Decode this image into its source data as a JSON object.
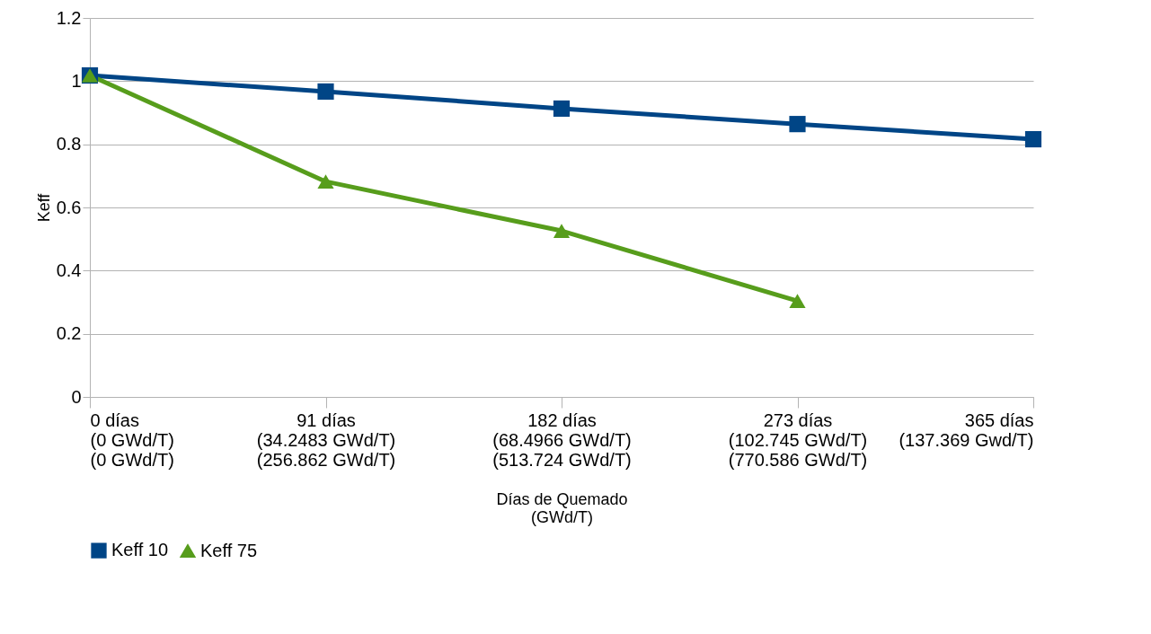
{
  "chart_data": {
    "type": "line",
    "xlabel": "Días de Quemado\n(GWd/T)",
    "ylabel": "Keff",
    "categories": [
      "0 días\n(0 GWd/T)\n(0 GWd/T)",
      "91 días\n(34.2483 GWd/T)\n(256.862 GWd/T)",
      "182 días\n(68.4966 GWd/T)\n(513.724 GWd/T)",
      "273 días\n(102.745 GWd/T)\n(770.586 GWd/T)",
      "365 días\n(137.369 Gwd/T)"
    ],
    "series": [
      {
        "name": "Keff 10",
        "color": "#004586",
        "marker": "square",
        "values": [
          1.018,
          0.967,
          0.913,
          0.864,
          0.816
        ]
      },
      {
        "name": "Keff 75",
        "color": "#579d1c",
        "marker": "triangle",
        "values": [
          1.018,
          0.682,
          0.526,
          0.304,
          null
        ]
      }
    ],
    "ylim": [
      0,
      1.2
    ],
    "yticks": [
      0,
      0.2,
      0.4,
      0.6,
      0.8,
      1,
      1.2
    ],
    "grid": "y",
    "legend": "bottom"
  }
}
